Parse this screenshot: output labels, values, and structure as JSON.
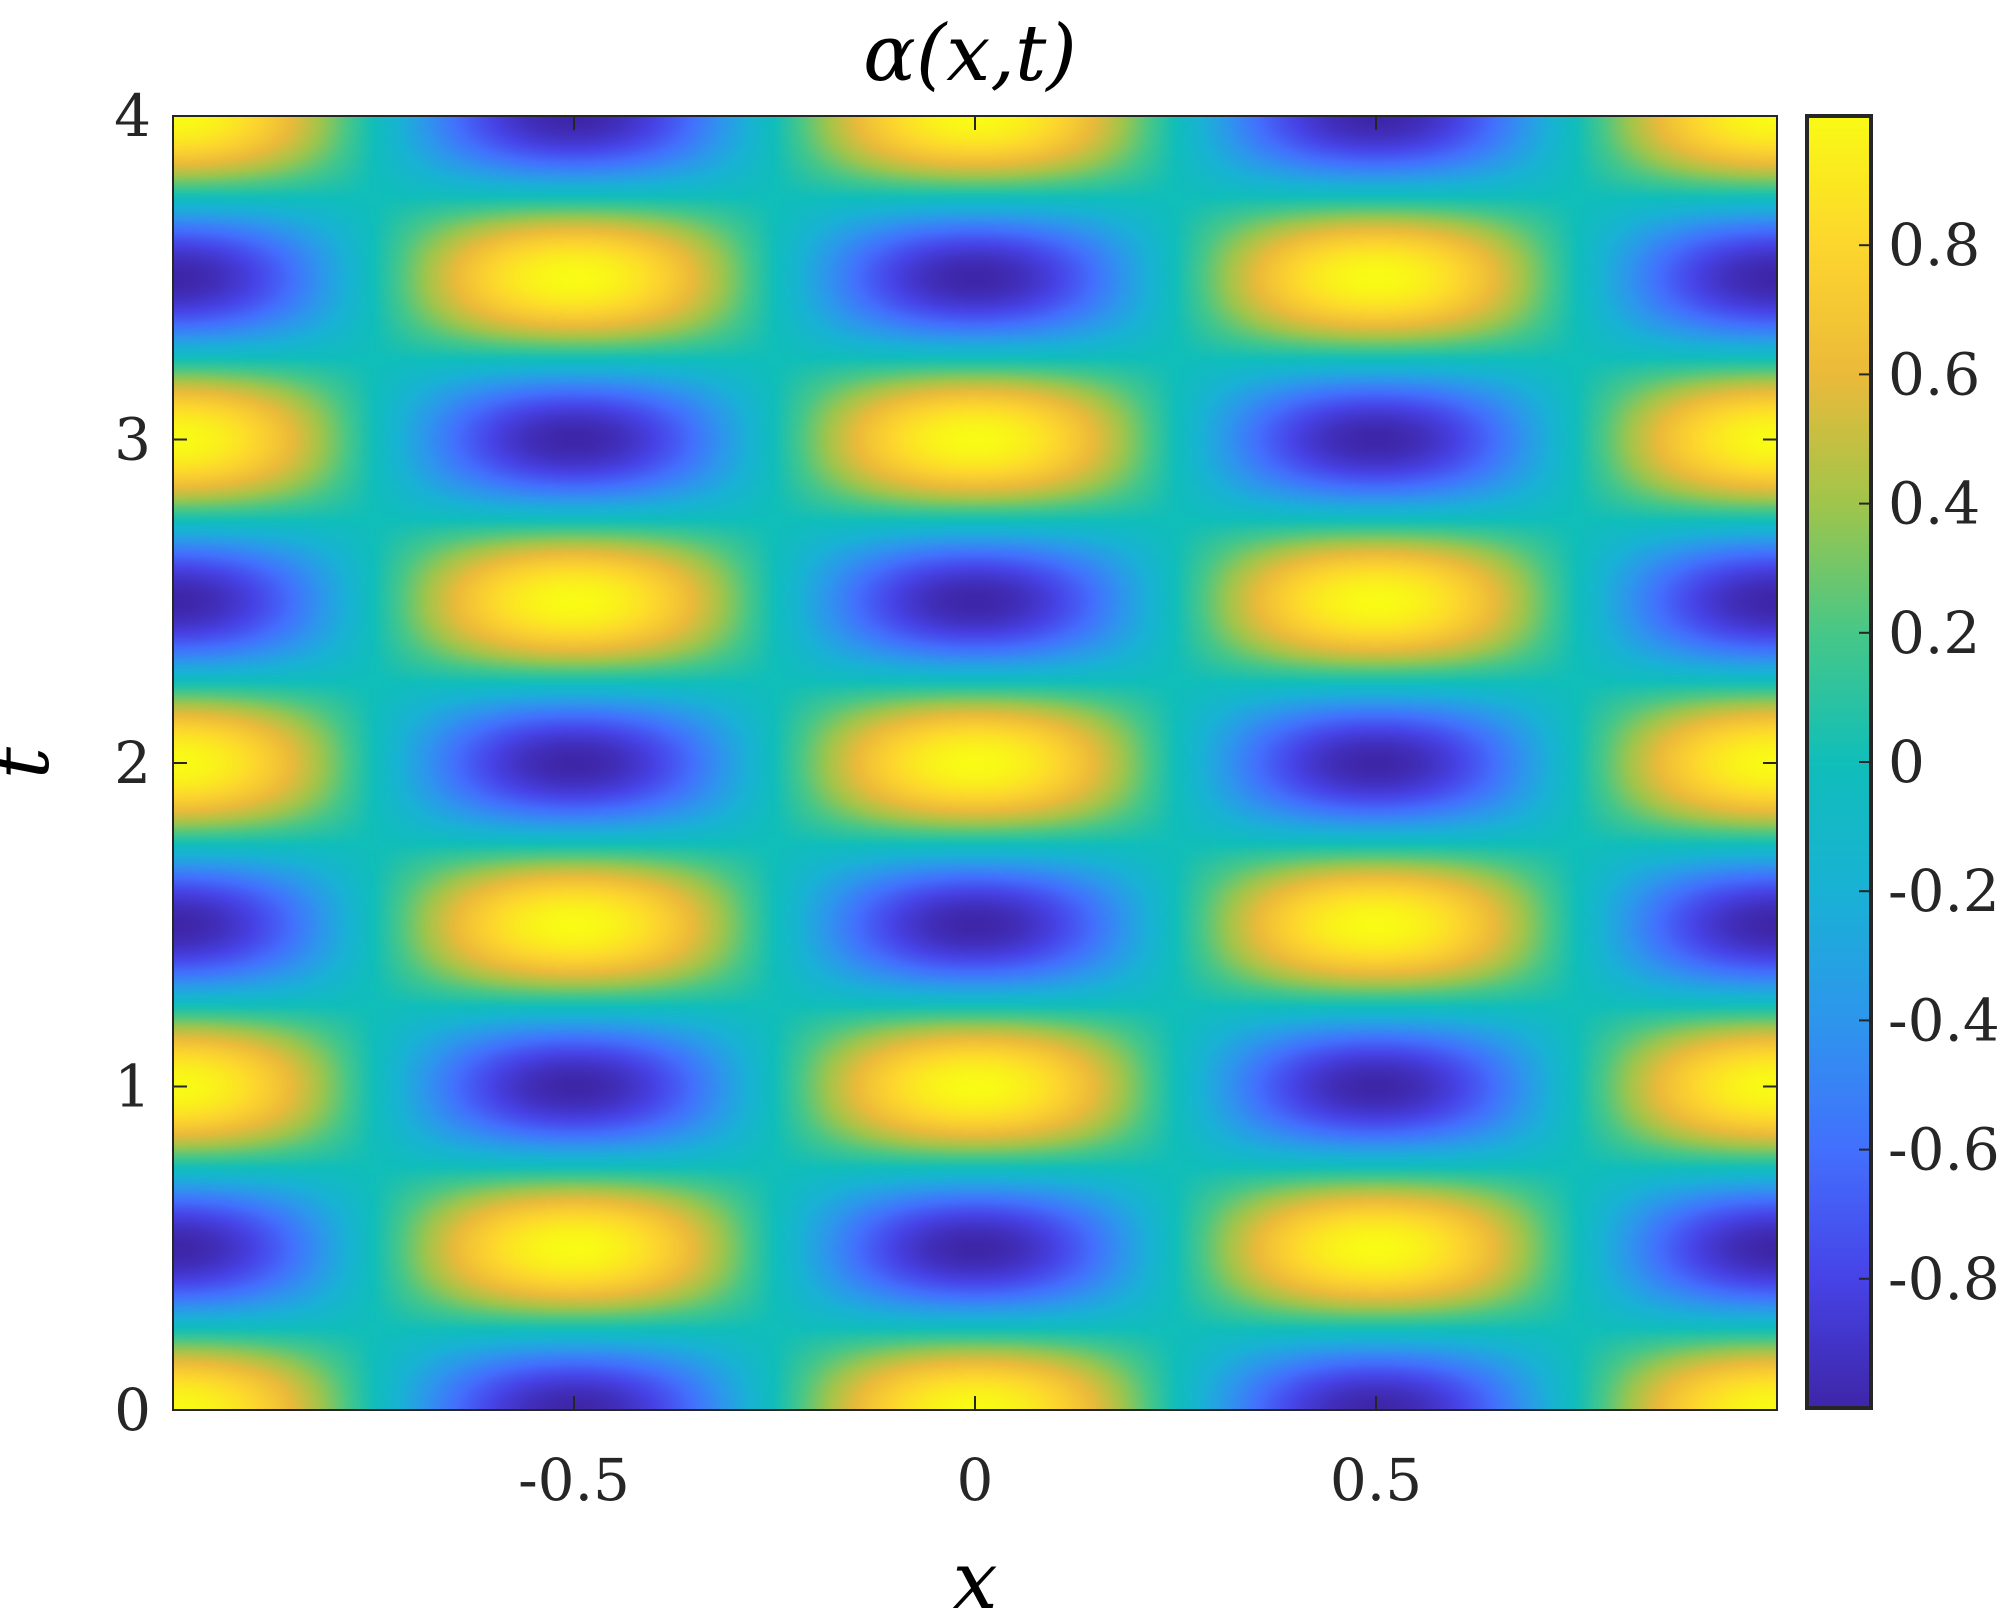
{
  "chart_data": {
    "type": "heatmap",
    "title": "α(x,t)",
    "xlabel": "x",
    "ylabel": "t",
    "xlim": [
      -1,
      1
    ],
    "ylim": [
      0,
      4
    ],
    "xticks": [
      -0.5,
      0,
      0.5
    ],
    "xtick_labels": [
      "-0.5",
      "0",
      "0.5"
    ],
    "yticks": [
      0,
      1,
      2,
      3,
      4
    ],
    "ytick_labels": [
      "0",
      "1",
      "2",
      "3",
      "4"
    ],
    "field": "alpha(x,t) = cos(2*pi*x) * cos(2*pi*t)",
    "colormap": "parula",
    "colorbar": {
      "range": [
        -1,
        1
      ],
      "ticks": [
        -0.8,
        -0.6,
        -0.4,
        -0.2,
        0,
        0.2,
        0.4,
        0.6,
        0.8
      ],
      "tick_labels": [
        "-0.8",
        "-0.6",
        "-0.4",
        "-0.2",
        "0",
        "0.2",
        "0.4",
        "0.6",
        "0.8"
      ]
    },
    "colors": {
      "min": "#3e26a8",
      "mid": "#10b9c5",
      "max": "#f9fb15",
      "axis": "#262626"
    }
  }
}
